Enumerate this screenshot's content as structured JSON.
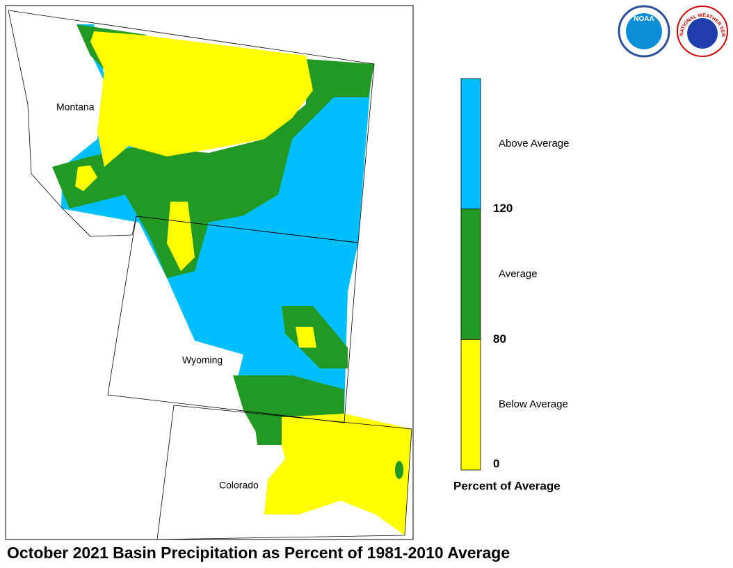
{
  "title": "October 2021 Basin Precipitation as Percent of 1981-2010 Average",
  "map": {
    "labels": [
      "Montana",
      "Wyoming",
      "Colorado"
    ]
  },
  "legend": {
    "title": "Percent of Average",
    "classes": [
      {
        "label": "Above Average",
        "color": "#00bfff"
      },
      {
        "label": "Average",
        "color": "#229922"
      },
      {
        "label": "Below Average",
        "color": "#ffff00"
      }
    ],
    "ticks": [
      "120",
      "80",
      "0"
    ]
  },
  "logos": [
    "NOAA",
    "NATIONAL WEATHER SERVICE"
  ]
}
